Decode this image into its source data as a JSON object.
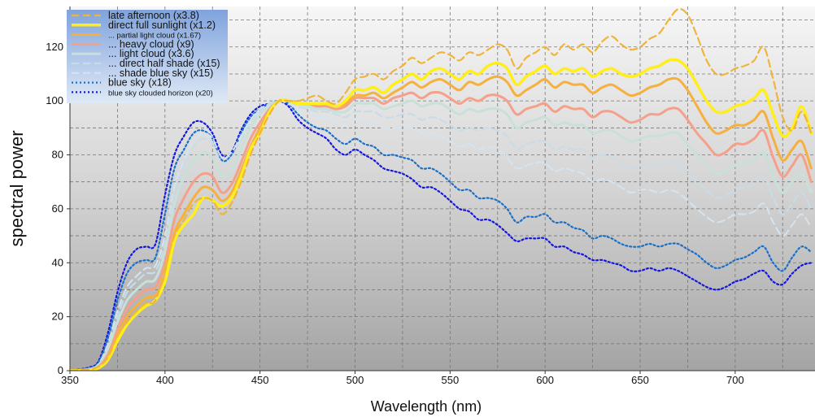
{
  "chart_data": {
    "type": "line",
    "xlabel": "Wavelength (nm)",
    "ylabel": "spectral power",
    "xlim": [
      350,
      742
    ],
    "ylim": [
      0,
      135
    ],
    "xticks": [
      350,
      400,
      450,
      500,
      550,
      600,
      650,
      700
    ],
    "yticks": [
      0,
      20,
      40,
      60,
      80,
      100,
      120
    ],
    "grid": true,
    "legend_position": "top-left",
    "x": [
      350,
      360,
      365,
      370,
      375,
      380,
      385,
      390,
      395,
      400,
      405,
      410,
      415,
      420,
      425,
      430,
      435,
      440,
      445,
      450,
      455,
      460,
      465,
      470,
      475,
      480,
      485,
      490,
      495,
      500,
      505,
      510,
      515,
      520,
      525,
      530,
      535,
      540,
      545,
      550,
      555,
      560,
      565,
      570,
      575,
      580,
      585,
      590,
      595,
      600,
      605,
      610,
      615,
      620,
      625,
      630,
      635,
      640,
      645,
      650,
      655,
      660,
      665,
      670,
      675,
      680,
      685,
      690,
      695,
      700,
      705,
      710,
      715,
      720,
      725,
      730,
      735,
      740
    ],
    "series": [
      {
        "name": "late afternoon (x3.8)",
        "color": "#f0b43c",
        "dash": "dashed",
        "width": 2.2,
        "values": [
          0,
          0.5,
          1.5,
          5,
          13,
          18,
          22,
          25,
          26,
          38,
          50,
          56,
          62,
          64,
          63,
          58,
          62,
          70,
          80,
          88,
          95,
          100,
          100,
          100,
          101,
          102,
          100,
          99,
          103,
          108,
          109,
          110,
          108,
          111,
          113,
          116,
          114,
          116,
          118,
          117,
          115,
          118,
          117,
          119,
          121,
          119,
          112,
          116,
          118,
          120,
          117,
          121,
          119,
          121,
          118,
          122,
          124,
          121,
          119,
          120,
          123,
          125,
          130,
          134,
          132,
          124,
          115,
          110,
          110,
          112,
          113,
          115,
          120,
          108,
          94,
          89,
          96,
          88
        ]
      },
      {
        "name": "direct full sunlight (x1.2)",
        "color": "#ffee1a",
        "dash": "solid",
        "width": 3.5,
        "values": [
          0,
          0.3,
          1,
          4,
          11,
          17,
          21,
          24,
          26,
          33,
          48,
          54,
          58,
          64,
          63,
          61,
          64,
          72,
          82,
          88,
          96,
          100,
          100,
          99,
          99,
          99,
          99,
          98,
          100,
          104,
          104,
          105,
          103,
          106,
          108,
          110,
          108,
          111,
          112,
          110,
          108,
          111,
          110,
          113,
          114,
          112,
          106,
          109,
          111,
          113,
          110,
          112,
          111,
          112,
          109,
          111,
          112,
          110,
          109,
          110,
          112,
          113,
          115,
          115,
          112,
          106,
          100,
          96,
          96,
          98,
          99,
          101,
          104,
          95,
          87,
          90,
          98,
          88
        ]
      },
      {
        "name": "... partial light cloud (x1.67)",
        "color": "#f5b03e",
        "dash": "solid",
        "width": 3,
        "values": [
          0,
          0.3,
          1,
          5,
          13,
          20,
          24,
          27,
          28,
          35,
          51,
          58,
          64,
          68,
          67,
          63,
          66,
          74,
          83,
          90,
          96,
          100,
          100,
          99,
          99,
          99,
          99,
          98,
          99,
          102,
          102,
          103,
          101,
          103,
          105,
          107,
          105,
          107,
          108,
          106,
          104,
          107,
          106,
          108,
          109,
          107,
          102,
          104,
          106,
          108,
          105,
          107,
          106,
          106,
          103,
          105,
          106,
          104,
          102,
          103,
          105,
          106,
          108,
          108,
          104,
          98,
          92,
          88,
          89,
          91,
          91,
          93,
          96,
          86,
          78,
          82,
          85,
          75
        ]
      },
      {
        "name": "... heavy cloud (x9)",
        "color": "#f5a08a",
        "dash": "solid",
        "width": 3,
        "values": [
          0,
          0.4,
          1.5,
          6,
          15,
          23,
          27,
          30,
          31,
          40,
          56,
          64,
          70,
          73,
          72,
          66,
          69,
          77,
          86,
          92,
          97,
          100,
          100,
          99,
          99,
          98,
          98,
          97,
          98,
          101,
          101,
          101,
          99,
          101,
          102,
          103,
          101,
          103,
          103,
          101,
          99,
          101,
          100,
          102,
          102,
          100,
          95,
          97,
          98,
          99,
          96,
          98,
          97,
          97,
          94,
          96,
          96,
          94,
          92,
          93,
          95,
          95,
          97,
          97,
          93,
          88,
          84,
          80,
          81,
          84,
          84,
          86,
          89,
          79,
          72,
          76,
          80,
          70
        ]
      },
      {
        "name": "... light cloud (x3.6)",
        "color": "#c8e0d8",
        "dash": "solid",
        "width": 3,
        "values": [
          0,
          0.5,
          2,
          8,
          18,
          26,
          30,
          33,
          34,
          44,
          62,
          72,
          78,
          81,
          79,
          72,
          75,
          82,
          90,
          95,
          98,
          100,
          100,
          99,
          98,
          97,
          97,
          96,
          96,
          99,
          99,
          99,
          97,
          98,
          99,
          100,
          98,
          99,
          99,
          97,
          95,
          97,
          96,
          97,
          97,
          95,
          90,
          92,
          93,
          94,
          91,
          92,
          91,
          91,
          88,
          89,
          89,
          87,
          85,
          86,
          87,
          87,
          88,
          88,
          84,
          80,
          76,
          73,
          74,
          76,
          77,
          78,
          81,
          72,
          66,
          70,
          73,
          66
        ]
      },
      {
        "name": "... direct half shade (x15)",
        "color": "#c8dce8",
        "dash": "dashed",
        "width": 2.2,
        "values": [
          0,
          0.6,
          2,
          9,
          20,
          29,
          33,
          36,
          37,
          47,
          66,
          76,
          83,
          86,
          84,
          77,
          79,
          85,
          92,
          96,
          99,
          100,
          100,
          98,
          97,
          96,
          96,
          95,
          94,
          96,
          96,
          96,
          94,
          94,
          95,
          95,
          93,
          94,
          93,
          91,
          89,
          90,
          89,
          90,
          89,
          87,
          82,
          84,
          85,
          85,
          82,
          83,
          82,
          82,
          79,
          80,
          79,
          77,
          75,
          76,
          77,
          76,
          77,
          77,
          73,
          70,
          67,
          64,
          65,
          67,
          68,
          69,
          72,
          64,
          58,
          62,
          66,
          60
        ]
      },
      {
        "name": "... shade blue sky (x15)",
        "color": "#d4e4f0",
        "dash": "dashed",
        "width": 2,
        "values": [
          0,
          0.7,
          2.5,
          10,
          22,
          31,
          35,
          38,
          39,
          50,
          68,
          78,
          85,
          88,
          86,
          79,
          81,
          87,
          93,
          97,
          99,
          100,
          99,
          97,
          96,
          94,
          94,
          92,
          91,
          93,
          93,
          92,
          90,
          90,
          90,
          90,
          88,
          88,
          87,
          85,
          83,
          84,
          82,
          83,
          82,
          79,
          75,
          76,
          77,
          77,
          74,
          75,
          74,
          73,
          70,
          71,
          70,
          68,
          66,
          67,
          67,
          66,
          67,
          66,
          63,
          60,
          57,
          55,
          56,
          58,
          58,
          59,
          62,
          55,
          50,
          54,
          58,
          53
        ]
      },
      {
        "name": "blue sky (x18)",
        "color": "#1a6fc8",
        "dash": "dotted",
        "width": 2.2,
        "values": [
          0,
          1,
          3,
          12,
          26,
          36,
          40,
          41,
          42,
          58,
          75,
          82,
          88,
          89,
          86,
          78,
          80,
          88,
          94,
          97,
          99,
          100,
          99,
          95,
          92,
          90,
          89,
          86,
          84,
          86,
          84,
          83,
          80,
          80,
          79,
          78,
          75,
          75,
          73,
          70,
          67,
          67,
          64,
          64,
          63,
          60,
          55,
          57,
          57,
          58,
          55,
          55,
          53,
          52,
          49,
          50,
          49,
          47,
          46,
          46,
          47,
          46,
          47,
          47,
          45,
          43,
          40,
          38,
          39,
          41,
          42,
          44,
          46,
          40,
          37,
          42,
          46,
          44
        ]
      },
      {
        "name": "blue sky clouded horizon (x20)",
        "color": "#1515e0",
        "dash": "dotted",
        "width": 2.2,
        "values": [
          0,
          1.2,
          3.5,
          14,
          29,
          40,
          45,
          46,
          47,
          65,
          80,
          87,
          92,
          92,
          88,
          80,
          81,
          89,
          95,
          98,
          99,
          100,
          98,
          93,
          90,
          88,
          86,
          82,
          80,
          82,
          80,
          78,
          75,
          74,
          73,
          71,
          68,
          68,
          66,
          63,
          60,
          59,
          56,
          56,
          54,
          51,
          48,
          49,
          49,
          49,
          46,
          46,
          44,
          43,
          41,
          41,
          40,
          39,
          37,
          37,
          38,
          37,
          38,
          37,
          35,
          33,
          31,
          30,
          31,
          33,
          34,
          36,
          37,
          33,
          32,
          36,
          39,
          40
        ]
      }
    ]
  }
}
